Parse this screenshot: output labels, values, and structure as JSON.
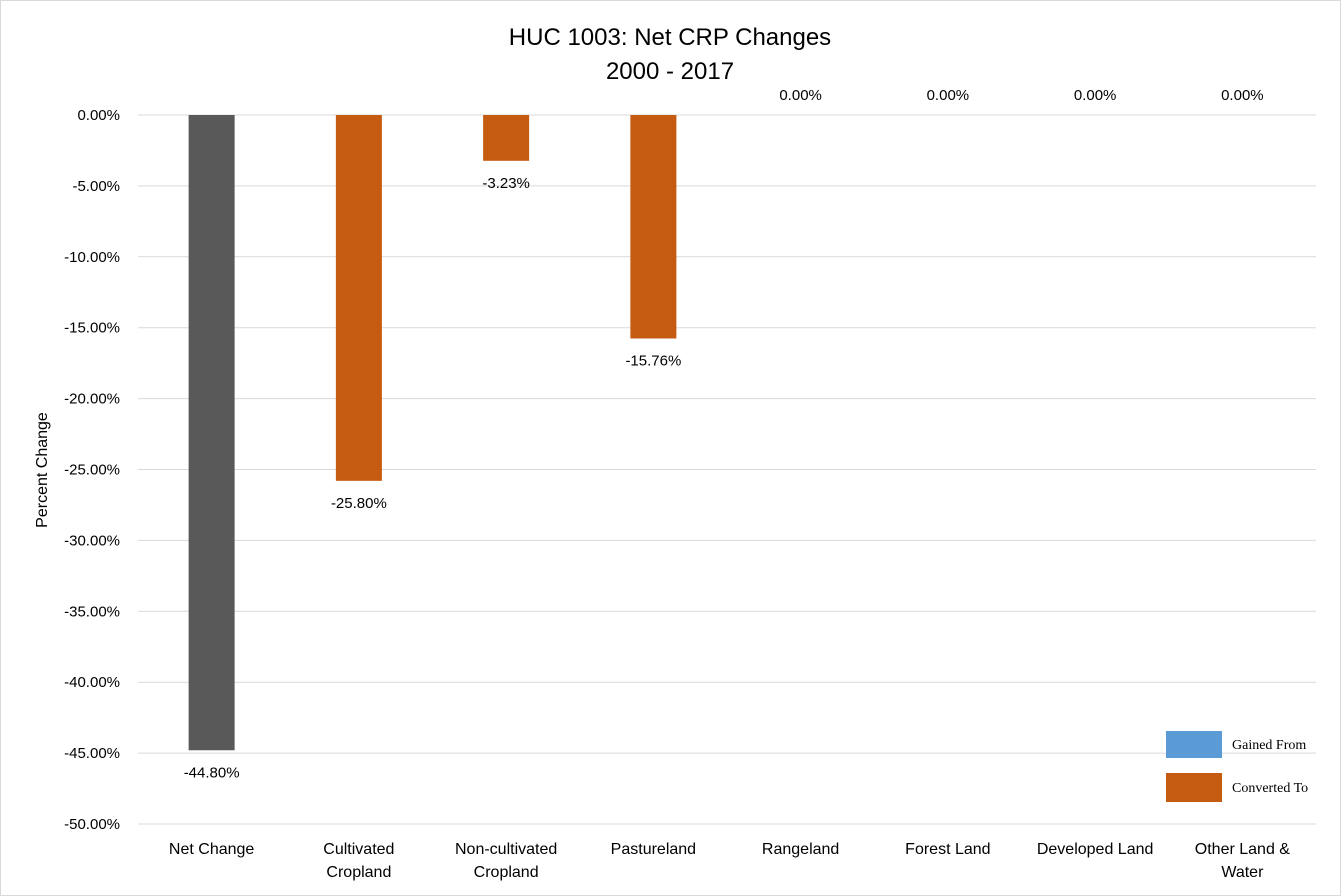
{
  "chart_data": {
    "type": "bar",
    "title": [
      "HUC 1003: Net CRP Changes",
      "2000 - 2017"
    ],
    "ylabel": "Percent Change",
    "xlabel": "",
    "ylim": [
      -50,
      0
    ],
    "ytick_step": 5,
    "ytick_labels": [
      "0.00%",
      "-5.00%",
      "-10.00%",
      "-15.00%",
      "-20.00%",
      "-25.00%",
      "-30.00%",
      "-35.00%",
      "-40.00%",
      "-45.00%",
      "-50.00%"
    ],
    "grid": true,
    "categories": [
      [
        "Net Change"
      ],
      [
        "Cultivated",
        "Cropland"
      ],
      [
        "Non-cultivated",
        "Cropland"
      ],
      [
        "Pastureland"
      ],
      [
        "Rangeland"
      ],
      [
        "Forest Land"
      ],
      [
        "Developed Land"
      ],
      [
        "Other Land &",
        "Water"
      ]
    ],
    "values": [
      -44.8,
      -25.8,
      -3.23,
      -15.76,
      0.0,
      0.0,
      0.0,
      0.0
    ],
    "data_labels": [
      "-44.80%",
      "-25.80%",
      "-3.23%",
      "-15.76%",
      "0.00%",
      "0.00%",
      "0.00%",
      "0.00%"
    ],
    "bar_series": [
      "net",
      "converted",
      "converted",
      "converted",
      "converted",
      "converted",
      "converted",
      "converted"
    ],
    "legend_position": "bottom-right",
    "legend": [
      {
        "name": "Gained From",
        "color": "#5b9bd5"
      },
      {
        "name": "Converted To",
        "color": "#c55a11"
      }
    ],
    "colors": {
      "net": "#595959",
      "converted": "#c55a11",
      "gained": "#5b9bd5",
      "grid": "#d9d9d9"
    }
  }
}
